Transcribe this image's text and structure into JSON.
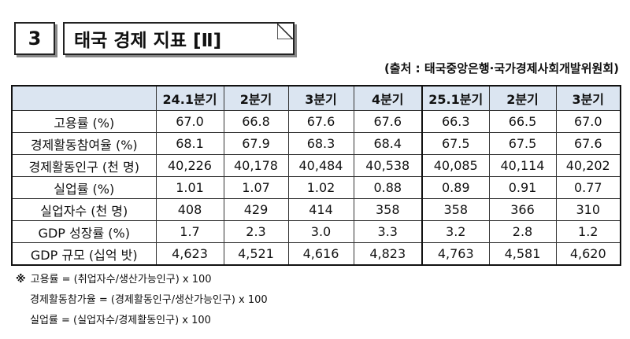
{
  "header": {
    "number": "3",
    "title": "태국 경제 지표 [Ⅱ]",
    "source": "(출처 : 태국중앙은행·국가경제사회개발위원회)"
  },
  "table": {
    "columns": [
      "24.1분기",
      "2분기",
      "3분기",
      "4분기",
      "25.1분기",
      "2분기",
      "3분기"
    ],
    "rows": [
      {
        "label": "고용률 (%)",
        "values": [
          "67.0",
          "66.8",
          "67.6",
          "67.6",
          "66.3",
          "66.5",
          "67.0"
        ]
      },
      {
        "label": "경제활동참여율 (%)",
        "values": [
          "68.1",
          "67.9",
          "68.3",
          "68.4",
          "67.5",
          "67.5",
          "67.6"
        ]
      },
      {
        "label": "경제활동인구 (천 명)",
        "values": [
          "40,226",
          "40,178",
          "40,484",
          "40,538",
          "40,085",
          "40,114",
          "40,202"
        ]
      },
      {
        "label": "실업률 (%)",
        "values": [
          "1.01",
          "1.07",
          "1.02",
          "0.88",
          "0.89",
          "0.91",
          "0.77"
        ]
      },
      {
        "label": "실업자수 (천 명)",
        "values": [
          "408",
          "429",
          "414",
          "358",
          "358",
          "366",
          "310"
        ]
      },
      {
        "label": "GDP 성장률 (%)",
        "values": [
          "1.7",
          "2.3",
          "3.0",
          "3.3",
          "3.2",
          "2.8",
          "1.2"
        ]
      },
      {
        "label": "GDP 규모 (십억 밧)",
        "values": [
          "4,623",
          "4,521",
          "4,616",
          "4,823",
          "4,763",
          "4,581",
          "4,620"
        ]
      }
    ]
  },
  "notes": {
    "marker": "※",
    "lines": [
      "고용률 = (취업자수/생산가능인구) x 100",
      "경제활동참가율 = (경제활동인구/생산가능인구) x 100",
      "실업률 = (실업자수/경제활동인구) x 100"
    ]
  }
}
